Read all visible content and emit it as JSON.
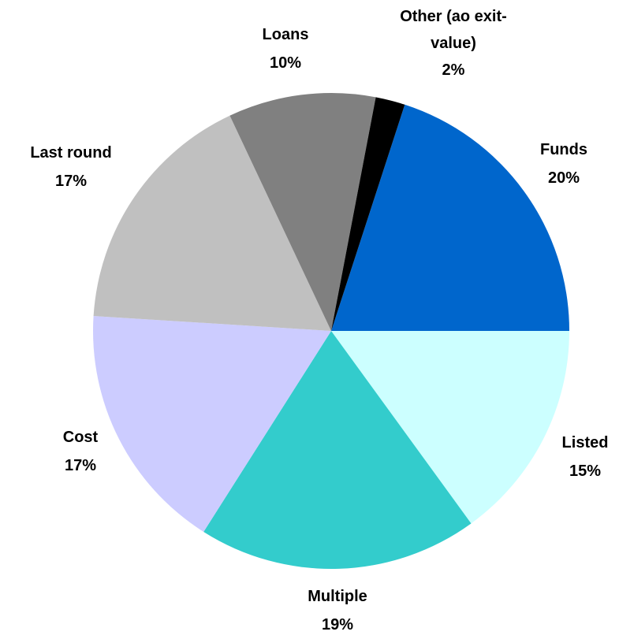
{
  "chart_data": {
    "type": "pie",
    "categories": [
      "Funds",
      "Listed",
      "Multiple",
      "Cost",
      "Last round",
      "Loans",
      "Other (ao exit-value)"
    ],
    "values": [
      20,
      15,
      19,
      17,
      17,
      10,
      2
    ],
    "value_labels": [
      "20%",
      "15%",
      "19%",
      "17%",
      "17%",
      "10%",
      "2%"
    ],
    "colors": [
      "#0066cc",
      "#ccffff",
      "#33cccc",
      "#ccccff",
      "#c0c0c0",
      "#808080",
      "#000000"
    ]
  }
}
